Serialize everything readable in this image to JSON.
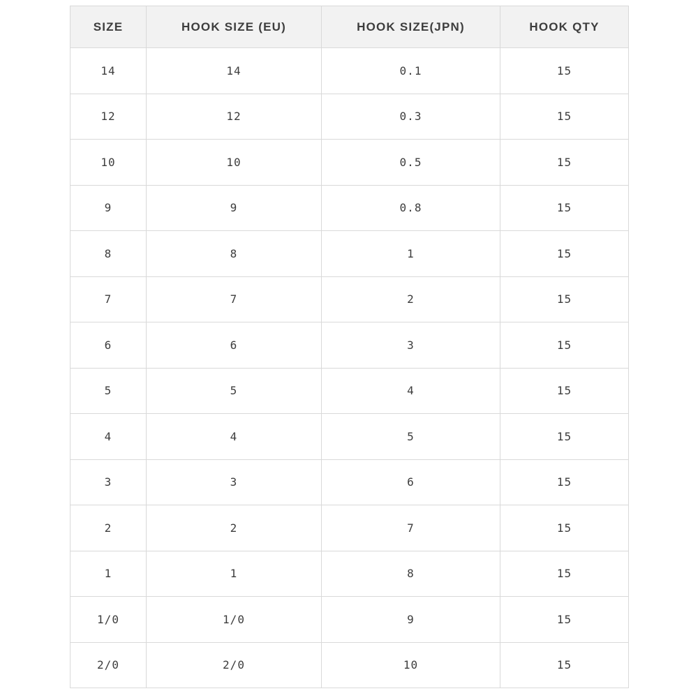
{
  "chart_data": {
    "type": "table",
    "title": "",
    "columns": [
      "SIZE",
      "HOOK SIZE (EU)",
      "HOOK SIZE(JPN)",
      "HOOK QTY"
    ],
    "rows": [
      [
        "14",
        "14",
        "0.1",
        "15"
      ],
      [
        "12",
        "12",
        "0.3",
        "15"
      ],
      [
        "10",
        "10",
        "0.5",
        "15"
      ],
      [
        "9",
        "9",
        "0.8",
        "15"
      ],
      [
        "8",
        "8",
        "1",
        "15"
      ],
      [
        "7",
        "7",
        "2",
        "15"
      ],
      [
        "6",
        "6",
        "3",
        "15"
      ],
      [
        "5",
        "5",
        "4",
        "15"
      ],
      [
        "4",
        "4",
        "5",
        "15"
      ],
      [
        "3",
        "3",
        "6",
        "15"
      ],
      [
        "2",
        "2",
        "7",
        "15"
      ],
      [
        "1",
        "1",
        "8",
        "15"
      ],
      [
        "1/0",
        "1/0",
        "9",
        "15"
      ],
      [
        "2/0",
        "2/0",
        "10",
        "15"
      ]
    ]
  },
  "colors": {
    "header_bg": "#f2f2f2",
    "border": "#d9d9d9",
    "text": "#3d3d3d",
    "page_bg": "#ffffff"
  }
}
